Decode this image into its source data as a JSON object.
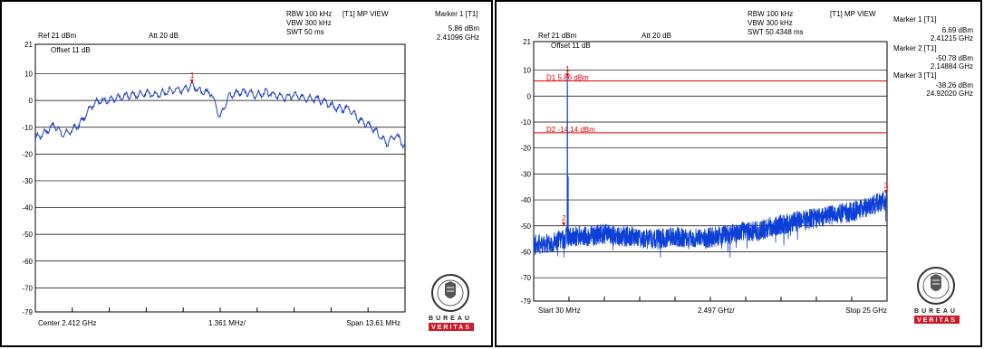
{
  "panels": [
    {
      "header": {
        "rbw": "RBW 100 kHz",
        "vbw": "VBW 300 kHz",
        "swt": "SWT 50 ms",
        "view": "[T1] MP VIEW",
        "ref": "Ref 21 dBm",
        "att": "Att  20 dB",
        "offset": "Offset 11 dB"
      },
      "markers": [
        {
          "title": "Marker 1 [T1]",
          "level": "5.86 dBm",
          "freq": "2.41096 GHz"
        }
      ],
      "bottom": {
        "left": "Center 2.412 GHz",
        "mid": "1.361 MHz/",
        "right": "Span 13.61 MHz"
      },
      "logo": {
        "top": "BUREAU",
        "bottom": "VERITAS",
        "ring": "BUREAU VERITAS 1828",
        "color_red": "#cc1b2b"
      },
      "chart_data": {
        "type": "line",
        "xlabel": "",
        "ylabel": "",
        "ylim": [
          -79,
          21
        ],
        "xlim": [
          2.405195,
          2.418805
        ],
        "y_ticks": [
          {
            "v": 21,
            "l": "21"
          },
          {
            "v": 10,
            "l": "10"
          },
          {
            "v": 0,
            "l": "0"
          },
          {
            "v": -10,
            "l": "-10"
          },
          {
            "v": -20,
            "l": "-20"
          },
          {
            "v": -30,
            "l": "-30"
          },
          {
            "v": -40,
            "l": "-40"
          },
          {
            "v": -50,
            "l": "-50"
          },
          {
            "v": -60,
            "l": "-60"
          },
          {
            "v": -70,
            "l": "-70"
          },
          {
            "v": -79,
            "l": "-79"
          }
        ],
        "series": [
          {
            "color": "#1f3fbf",
            "x": [
              2.4052,
              2.40554,
              2.40588,
              2.40622,
              2.40656,
              2.4069,
              2.40724,
              2.40758,
              2.40792,
              2.40826,
              2.4086,
              2.40894,
              2.40928,
              2.40962,
              2.40996,
              2.4103,
              2.41064,
              2.41096,
              2.41132,
              2.41166,
              2.412,
              2.41234,
              2.41268,
              2.41302,
              2.41336,
              2.4137,
              2.41404,
              2.41438,
              2.41472,
              2.41506,
              2.4154,
              2.41574,
              2.41608,
              2.41642,
              2.41676,
              2.4171,
              2.41744,
              2.41778,
              2.41812,
              2.41846,
              2.4188
            ],
            "y": [
              -14,
              -12,
              -9,
              -13,
              -11,
              -8,
              -2,
              0,
              0,
              1,
              2,
              2,
              3,
              2,
              3,
              4,
              4,
              5.86,
              3,
              3,
              -6,
              2,
              3,
              3,
              2,
              3,
              2,
              1,
              2,
              1,
              1,
              0,
              -2,
              -3,
              -3,
              -7,
              -9,
              -12,
              -16,
              -13,
              -17
            ],
            "noise": 1.2
          }
        ],
        "markers": [
          {
            "label": "1",
            "x": 2.41096,
            "y": 5.86
          }
        ],
        "lines": [],
        "grid": true
      }
    },
    {
      "header": {
        "rbw": "RBW 100 kHz",
        "vbw": "VBW 300 kHz",
        "swt": "SWT 50.4348 ms",
        "view": "[T1] MP VIEW",
        "ref": "Ref 21 dBm",
        "att": "Att  20 dB",
        "offset": "Offset 11 dB"
      },
      "markers": [
        {
          "title": "Marker 1 [T1]",
          "level": "6.69 dBm",
          "freq": "2.41215 GHz"
        },
        {
          "title": "Marker 2 [T1]",
          "level": "-50.78 dBm",
          "freq": "2.14884 GHz"
        },
        {
          "title": "Marker 3 [T1]",
          "level": "-38.26 dBm",
          "freq": "24.92020 GHz"
        }
      ],
      "bottom": {
        "left": "Start 30 MHz",
        "mid": "2.497 GHz/",
        "right": "Stop 25 GHz"
      },
      "logo": {
        "top": "BUREAU",
        "bottom": "VERITAS",
        "ring": "BUREAU VERITAS 1828",
        "color_red": "#cc1b2b"
      },
      "chart_data": {
        "type": "line",
        "xlabel": "",
        "ylabel": "",
        "ylim": [
          -79,
          21
        ],
        "xlim": [
          0.03,
          25
        ],
        "y_ticks": [
          {
            "v": 21,
            "l": "21"
          },
          {
            "v": 10,
            "l": "10"
          },
          {
            "v": 0,
            "l": "0"
          },
          {
            "v": -10,
            "l": "-10"
          },
          {
            "v": -20,
            "l": "-20"
          },
          {
            "v": -30,
            "l": "-30"
          },
          {
            "v": -40,
            "l": "-40"
          },
          {
            "v": -50,
            "l": "-50"
          },
          {
            "v": -60,
            "l": "-60"
          },
          {
            "v": -70,
            "l": "-70"
          },
          {
            "v": -79,
            "l": "-79"
          }
        ],
        "series": [
          {
            "color": "#0b3fd6",
            "x": [
              0.03,
              1.0,
              2.0,
              2.41,
              3.0,
              4.0,
              5.0,
              6.0,
              7.0,
              8.0,
              9.0,
              10.0,
              11.0,
              12.0,
              13.0,
              14.0,
              15.0,
              16.0,
              17.0,
              18.0,
              19.0,
              20.0,
              21.0,
              22.0,
              23.0,
              24.0,
              25.0
            ],
            "y": [
              -57,
              -57,
              -55,
              6.69,
              -54,
              -54,
              -53,
              -54,
              -54,
              -55,
              -55,
              -54,
              -55,
              -55,
              -54,
              -53,
              -52,
              -52,
              -50,
              -49,
              -48,
              -47,
              -46,
              -45,
              -44,
              -42,
              -40
            ],
            "noise": 4
          }
        ],
        "markers": [
          {
            "label": "1",
            "x": 2.41215,
            "y": 6.69
          },
          {
            "label": "2",
            "x": 2.14884,
            "y": -50.78
          },
          {
            "label": "3",
            "x": 24.9202,
            "y": -38.26
          }
        ],
        "lines": [
          {
            "label": "D1 5.86 dBm",
            "y": 5.86,
            "color": "#e00000"
          },
          {
            "label": "D2 -14.14 dBm",
            "y": -14.14,
            "color": "#e00000"
          }
        ],
        "grid": true
      }
    }
  ]
}
